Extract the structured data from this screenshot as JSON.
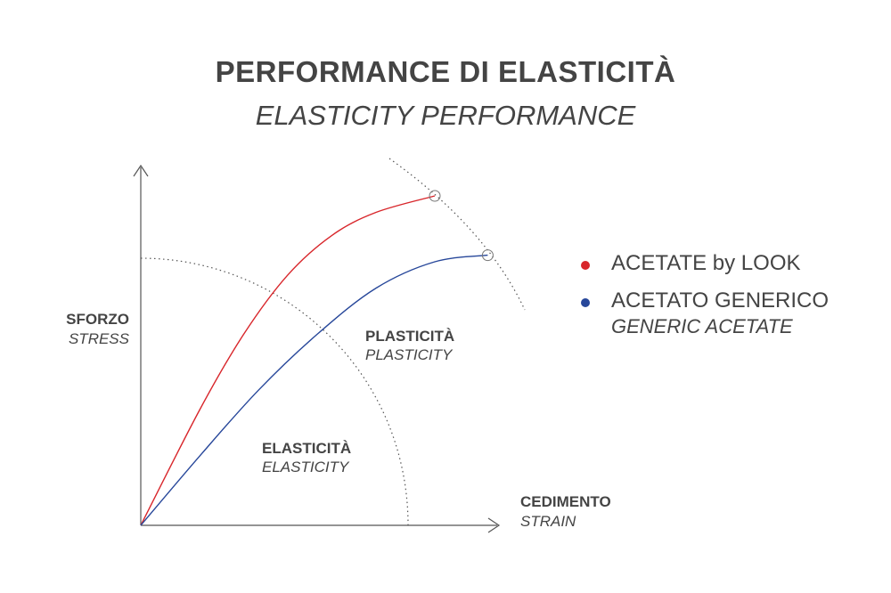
{
  "title": "PERFORMANCE DI ELASTICITÀ",
  "subtitle": "ELASTICITY PERFORMANCE",
  "axes": {
    "y_label": "SFORZO",
    "y_label_en": "STRESS",
    "x_label": "CEDIMENTO",
    "x_label_en": "STRAIN"
  },
  "regions": {
    "elastic": "ELASTICITÀ",
    "elastic_en": "ELASTICITY",
    "plastic": "PLASTICITÀ",
    "plastic_en": "PLASTICITY"
  },
  "legend": [
    {
      "label": "ACETATE by LOOK",
      "sub": "",
      "color": "#d8262b"
    },
    {
      "label": "ACETATO GENERICO",
      "sub": "GENERIC ACETATE",
      "color": "#27479a"
    }
  ],
  "chart_data": {
    "type": "line",
    "title": "PERFORMANCE DI ELASTICITÀ",
    "subtitle": "ELASTICITY PERFORMANCE",
    "xlabel": "CEDIMENTO / STRAIN",
    "ylabel": "SFORZO / STRESS",
    "xlim": [
      0,
      100
    ],
    "ylim": [
      0,
      100
    ],
    "grid": false,
    "legend_position": "right",
    "series": [
      {
        "name": "ACETATE by LOOK",
        "color": "#d8262b",
        "x": [
          0,
          20,
          35,
          50,
          65,
          80,
          100
        ],
        "y": [
          0,
          35,
          58,
          76,
          88,
          95,
          100
        ],
        "end_marker": "circle"
      },
      {
        "name": "ACETATO GENERICO",
        "color": "#27479a",
        "x": [
          0,
          20,
          40,
          60,
          80,
          100,
          118
        ],
        "y": [
          0,
          21,
          41,
          58,
          72,
          80,
          82
        ],
        "end_marker": "circle"
      }
    ],
    "boundaries": [
      {
        "kind": "elastic-limit-arc",
        "style": "dotted"
      },
      {
        "kind": "rupture-arc",
        "style": "dotted"
      }
    ]
  }
}
